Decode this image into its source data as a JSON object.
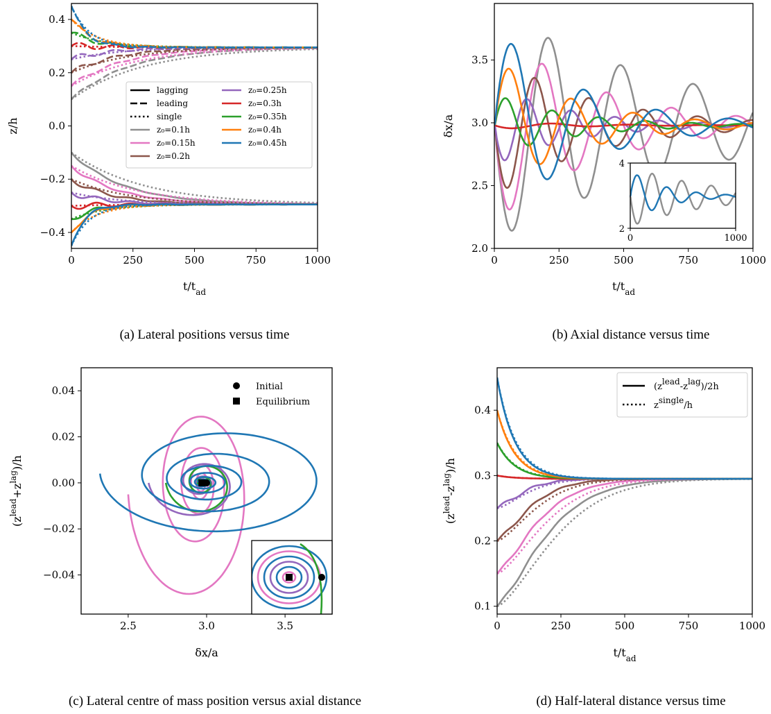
{
  "colors": {
    "z0_0.1h": "#8f8f8f",
    "z0_0.15h": "#e377c2",
    "z0_0.2h": "#8c564b",
    "z0_0.25h": "#9467bd",
    "z0_0.3h": "#d62728",
    "z0_0.35h": "#2ca02c",
    "z0_0.4h": "#ff7f0e",
    "z0_0.45h": "#1f77b4"
  },
  "captions": {
    "a": "(a) Lateral positions versus time",
    "b": "(b) Axial distance versus time",
    "c": "(c) Lateral centre of mass position versus axial distance",
    "d": "(d) Half-lateral distance versus time"
  },
  "chart_data": [
    {
      "id": "a",
      "type": "line",
      "title": "",
      "xlabel": "t/t_ad",
      "ylabel": "z/h",
      "xlim": [
        0,
        1000
      ],
      "ylim": [
        -0.46,
        0.46
      ],
      "xticks": [
        "0",
        "250",
        "500",
        "750",
        "1000"
      ],
      "yticks": [
        "−0.4",
        "−0.2",
        "0.0",
        "0.2",
        "0.4"
      ],
      "legend": {
        "placement": "center-right",
        "styles": [
          "lagging",
          "leading",
          "single"
        ],
        "entries": [
          "z₀=0.1h",
          "z₀=0.15h",
          "z₀=0.2h",
          "z₀=0.25h",
          "z₀=0.3h",
          "z₀=0.35h",
          "z₀=0.4h",
          "z₀=0.45h"
        ]
      },
      "series": [
        {
          "z0": 0.1,
          "leading_start": 0.1,
          "lagging_start": -0.1,
          "equilibrium": 0.295
        },
        {
          "z0": 0.15,
          "leading_start": 0.15,
          "lagging_start": -0.15,
          "equilibrium": 0.295
        },
        {
          "z0": 0.2,
          "leading_start": 0.2,
          "lagging_start": -0.2,
          "equilibrium": 0.295
        },
        {
          "z0": 0.25,
          "leading_start": 0.25,
          "lagging_start": -0.25,
          "equilibrium": 0.295
        },
        {
          "z0": 0.3,
          "leading_start": 0.3,
          "lagging_start": -0.3,
          "equilibrium": 0.295
        },
        {
          "z0": 0.35,
          "leading_start": 0.35,
          "lagging_start": -0.35,
          "equilibrium": 0.295
        },
        {
          "z0": 0.4,
          "leading_start": 0.4,
          "lagging_start": -0.4,
          "equilibrium": 0.295
        },
        {
          "z0": 0.45,
          "leading_start": 0.45,
          "lagging_start": -0.45,
          "equilibrium": 0.295
        }
      ]
    },
    {
      "id": "b",
      "type": "line",
      "title": "",
      "xlabel": "t/t_ad",
      "ylabel": "δx/a",
      "xlim": [
        0,
        1000
      ],
      "ylim": [
        2.0,
        3.95
      ],
      "xticks": [
        "0",
        "250",
        "500",
        "750",
        "1000"
      ],
      "yticks": [
        "2.0",
        "2.5",
        "3.0",
        "3.5"
      ],
      "series": [
        {
          "z0": 0.1,
          "amplitude": -0.92,
          "period": 140,
          "decay": 750,
          "phase_shift": 0
        },
        {
          "z0": 0.15,
          "amplitude": -0.78,
          "period": 125,
          "decay": 400,
          "phase_shift": 0
        },
        {
          "z0": 0.2,
          "amplitude": -0.57,
          "period": 105,
          "decay": 380,
          "phase_shift": 0
        },
        {
          "z0": 0.25,
          "amplitude": -0.32,
          "period": 85,
          "decay": 300,
          "phase_shift": 0
        },
        {
          "z0": 0.3,
          "amplitude": -0.03,
          "period": 150,
          "decay": 300,
          "phase_shift": 0
        },
        {
          "z0": 0.35,
          "amplitude": 0.25,
          "period": 90,
          "decay": 300,
          "phase_shift": 0
        },
        {
          "z0": 0.4,
          "amplitude": 0.54,
          "period": 120,
          "decay": 320,
          "phase_shift": 0
        },
        {
          "z0": 0.45,
          "amplitude": 0.79,
          "period": 140,
          "decay": 340,
          "phase_shift": 0
        }
      ],
      "inset": {
        "xlim": [
          0,
          1000
        ],
        "ylim": [
          2,
          4
        ],
        "xticks": [
          "0",
          "1000"
        ],
        "yticks": [
          "2",
          "4"
        ]
      }
    },
    {
      "id": "c",
      "type": "line",
      "title": "",
      "xlabel": "δx/a",
      "ylabel": "(z^lead+z^lag)/h",
      "xlim": [
        2.2,
        3.8
      ],
      "ylim": [
        -0.057,
        0.05
      ],
      "xticks": [
        "2.5",
        "3.0",
        "3.5"
      ],
      "yticks": [
        "0.04",
        "0.02",
        "0.00",
        "−0.02",
        "−0.04"
      ],
      "legend": {
        "placement": "top-right",
        "entries": [
          "Initial",
          "Equilibrium"
        ]
      },
      "markers": {
        "initial": [
          3.0,
          0.0
        ],
        "equilibrium": [
          2.97,
          0.0
        ]
      },
      "series": [
        {
          "z0": 0.15,
          "amplitude_x": 0.42,
          "amplitude_y": 0.057,
          "turns": 5
        },
        {
          "z0": 0.25,
          "amplitude_x": 0.32,
          "amplitude_y": 0.018,
          "turns": 3
        },
        {
          "z0": 0.35,
          "amplitude_x": 0.25,
          "amplitude_y": 0.016,
          "turns": 3
        },
        {
          "z0": 0.45,
          "amplitude_x": 0.8,
          "amplitude_y": 0.028,
          "turns": 6
        }
      ]
    },
    {
      "id": "d",
      "type": "line",
      "title": "",
      "xlabel": "t/t_ad",
      "ylabel": "(z^lead−z^lag)/h",
      "xlim": [
        0,
        1000
      ],
      "ylim": [
        0.088,
        0.465
      ],
      "xticks": [
        "0",
        "250",
        "500",
        "750",
        "1000"
      ],
      "yticks": [
        "0.1",
        "0.2",
        "0.3",
        "0.4"
      ],
      "legend": {
        "placement": "top-right",
        "entries": [
          "(z^lead-z^lag)/2h",
          "z^single/h"
        ]
      },
      "equilibrium": 0.295,
      "series": [
        {
          "z0": 0.1,
          "start": 0.1
        },
        {
          "z0": 0.15,
          "start": 0.15
        },
        {
          "z0": 0.2,
          "start": 0.2
        },
        {
          "z0": 0.25,
          "start": 0.25
        },
        {
          "z0": 0.3,
          "start": 0.3
        },
        {
          "z0": 0.35,
          "start": 0.35
        },
        {
          "z0": 0.4,
          "start": 0.4
        },
        {
          "z0": 0.45,
          "start": 0.45
        }
      ]
    }
  ]
}
